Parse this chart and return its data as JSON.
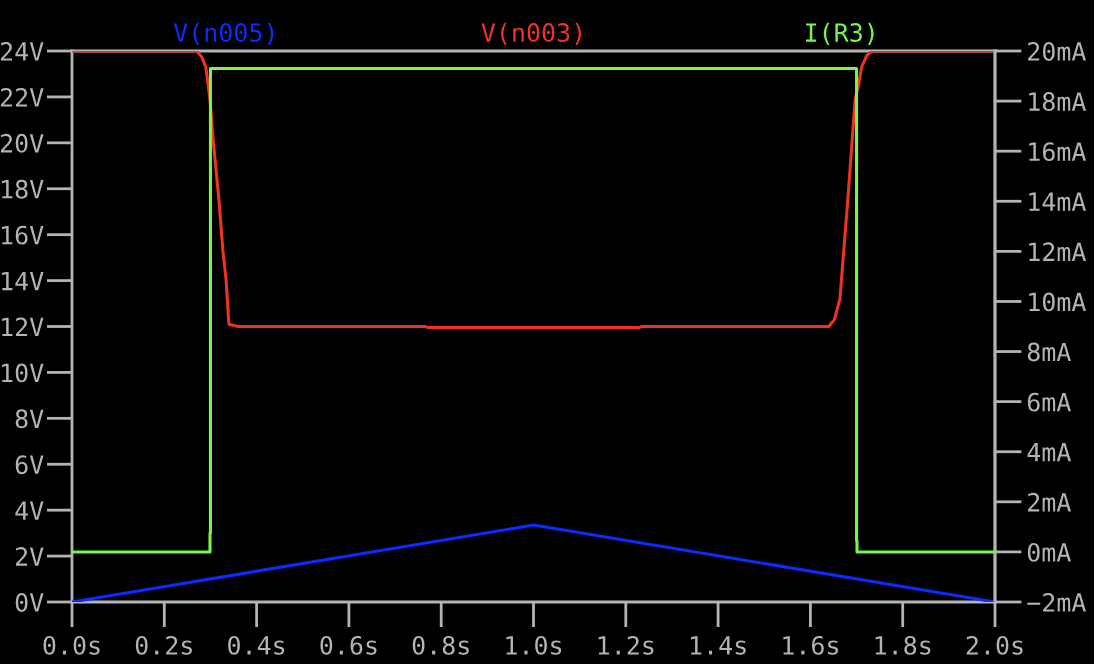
{
  "chart_data": {
    "type": "line",
    "xlim": [
      0,
      2
    ],
    "xticks": [
      {
        "value": 0,
        "label": "0.0s"
      },
      {
        "value": 0.2,
        "label": "0.2s"
      },
      {
        "value": 0.4,
        "label": "0.4s"
      },
      {
        "value": 0.6,
        "label": "0.6s"
      },
      {
        "value": 0.8,
        "label": "0.8s"
      },
      {
        "value": 1.0,
        "label": "1.0s"
      },
      {
        "value": 1.2,
        "label": "1.2s"
      },
      {
        "value": 1.4,
        "label": "1.4s"
      },
      {
        "value": 1.6,
        "label": "1.6s"
      },
      {
        "value": 1.8,
        "label": "1.8s"
      },
      {
        "value": 2.0,
        "label": "2.0s"
      }
    ],
    "ylim": [
      0,
      24
    ],
    "yticks": [
      {
        "value": 0,
        "label": "0V"
      },
      {
        "value": 2,
        "label": "2V"
      },
      {
        "value": 4,
        "label": "4V"
      },
      {
        "value": 6,
        "label": "6V"
      },
      {
        "value": 8,
        "label": "8V"
      },
      {
        "value": 10,
        "label": "10V"
      },
      {
        "value": 12,
        "label": "12V"
      },
      {
        "value": 14,
        "label": "14V"
      },
      {
        "value": 16,
        "label": "16V"
      },
      {
        "value": 18,
        "label": "18V"
      },
      {
        "value": 20,
        "label": "20V"
      },
      {
        "value": 22,
        "label": "22V"
      },
      {
        "value": 24,
        "label": "24V"
      }
    ],
    "y2lim": [
      -2,
      20
    ],
    "y2ticks": [
      {
        "value": -2,
        "label": "−2mA"
      },
      {
        "value": 0,
        "label": "0mA"
      },
      {
        "value": 2,
        "label": "2mA"
      },
      {
        "value": 4,
        "label": "4mA"
      },
      {
        "value": 6,
        "label": "6mA"
      },
      {
        "value": 8,
        "label": "8mA"
      },
      {
        "value": 10,
        "label": "10mA"
      },
      {
        "value": 12,
        "label": "12mA"
      },
      {
        "value": 14,
        "label": "14mA"
      },
      {
        "value": 16,
        "label": "16mA"
      },
      {
        "value": 18,
        "label": "18mA"
      },
      {
        "value": 20,
        "label": "20mA"
      }
    ],
    "legend": "top",
    "series": [
      {
        "name": "V(n005)",
        "color": "#0a2cff",
        "x": [
          0,
          1.0,
          2.0
        ],
        "values": [
          0,
          3.35,
          0
        ]
      },
      {
        "name": "V(n003)",
        "color": "#ee3322",
        "x": [
          0,
          0.27,
          0.281,
          0.29,
          0.299,
          0.306,
          0.3185,
          0.327,
          0.334,
          0.34,
          0.36,
          0.765,
          0.77,
          1.23,
          1.235,
          1.64,
          1.652,
          1.664,
          1.681,
          1.697,
          1.705,
          1.711,
          1.722,
          1.733,
          2.0
        ],
        "values": [
          24,
          24,
          23.75,
          23.3,
          21.9,
          20.1,
          17.5,
          15.3,
          14.0,
          12.1,
          12.0,
          12.0,
          11.96,
          11.96,
          12.0,
          12.0,
          12.3,
          13.2,
          17.5,
          21.9,
          22.6,
          23.3,
          23.8,
          24,
          24
        ]
      },
      {
        "name": "I(R3)",
        "color": "#77f548",
        "axis": "y2",
        "x": [
          0,
          0.299,
          0.299,
          0.3,
          0.3,
          1.7,
          1.7,
          1.701,
          1.701,
          2.0
        ],
        "values": [
          0,
          0,
          0.75,
          0.75,
          19.3,
          19.3,
          0.45,
          0.45,
          0,
          0
        ]
      }
    ]
  }
}
